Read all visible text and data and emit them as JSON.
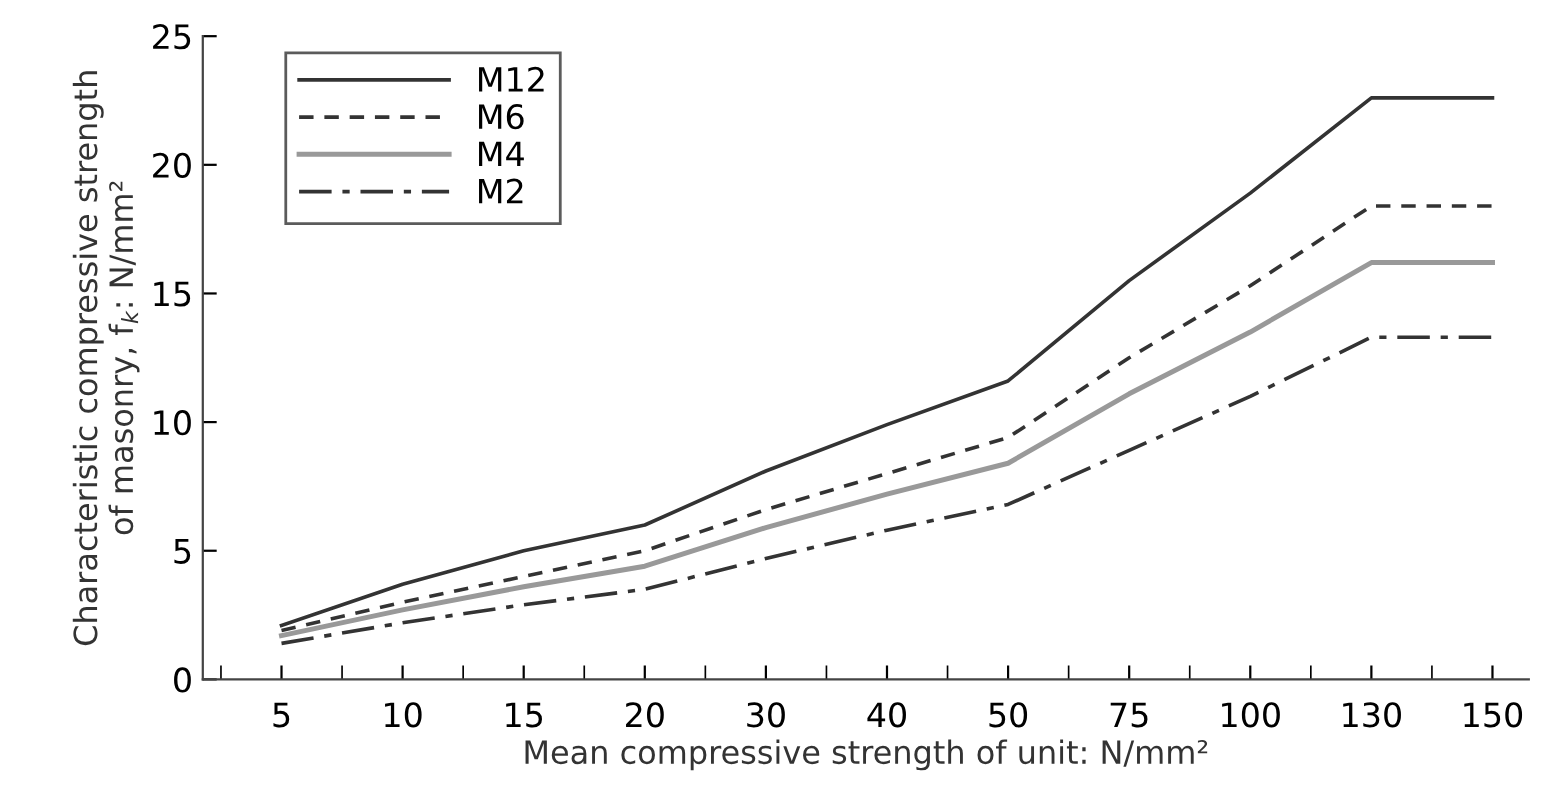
{
  "chart_data": {
    "type": "line",
    "xlabel": "Mean compressive strength of unit: N/mm²",
    "ylabel": "Characteristic compressive strength\nof masonry, f$_{k}$: N/mm²",
    "categories": [
      "5",
      "10",
      "15",
      "20",
      "30",
      "40",
      "50",
      "75",
      "100",
      "130",
      "150"
    ],
    "series": [
      {
        "name": "M12",
        "color": "#333333",
        "line_style": "solid",
        "values": [
          2.1,
          3.7,
          5.0,
          6.0,
          8.1,
          9.9,
          11.6,
          15.5,
          18.9,
          22.6,
          22.6
        ]
      },
      {
        "name": "M6",
        "color": "#333333",
        "line_style": "dashed",
        "values": [
          1.9,
          3.0,
          4.0,
          5.0,
          6.6,
          8.0,
          9.4,
          12.5,
          15.3,
          18.4,
          18.4
        ]
      },
      {
        "name": "M4",
        "color": "#999999",
        "line_style": "solid",
        "values": [
          1.7,
          2.7,
          3.6,
          4.4,
          5.9,
          7.2,
          8.4,
          11.1,
          13.5,
          16.2,
          16.2
        ]
      },
      {
        "name": "M2",
        "color": "#333333",
        "line_style": "dashdot",
        "values": [
          1.4,
          2.2,
          2.9,
          3.5,
          4.7,
          5.8,
          6.8,
          8.9,
          11.0,
          13.3,
          13.3
        ]
      }
    ],
    "ylim": [
      0,
      25
    ],
    "yticks": [
      0,
      5,
      10,
      15,
      20,
      25
    ],
    "grid": false,
    "legend": "top left",
    "marker": "none"
  }
}
